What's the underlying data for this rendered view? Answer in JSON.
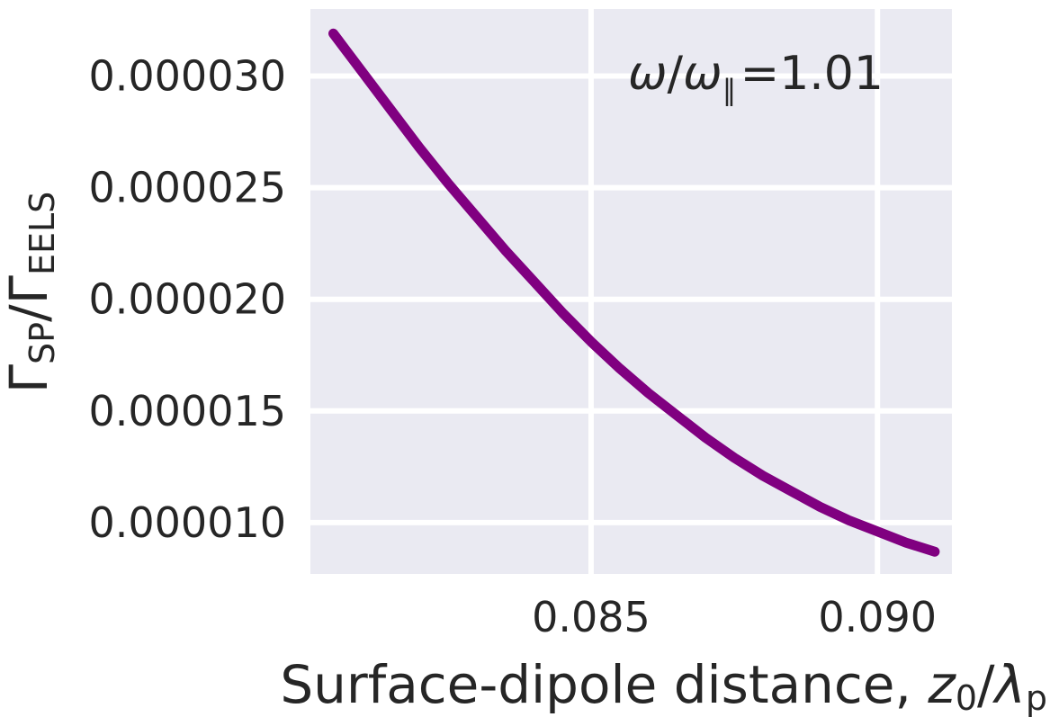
{
  "chart_data": {
    "type": "line",
    "xlabel": {
      "main": "Surface-dipole distance, ",
      "sym": "z",
      "sub1": "0",
      "slash": "/",
      "sym2": "λ",
      "sub2": "p"
    },
    "ylabel": {
      "gamma1": "Γ",
      "sub1": "SP",
      "slash": "/",
      "gamma2": "Γ",
      "sub2": "EELS"
    },
    "annotation": {
      "w1": "ω",
      "slash": "/",
      "w2": "ω",
      "sub": "∥",
      "rest": "=1.01"
    },
    "xlim": [
      0.0801,
      0.0913
    ],
    "ylim": [
      7.7e-06,
      3.3e-05
    ],
    "x_ticks": [
      {
        "value": 0.085,
        "label": "0.085"
      },
      {
        "value": 0.09,
        "label": "0.090"
      }
    ],
    "y_ticks": [
      {
        "value": 1e-05,
        "label": "0.000010"
      },
      {
        "value": 1.5e-05,
        "label": "0.000015"
      },
      {
        "value": 2e-05,
        "label": "0.000020"
      },
      {
        "value": 2.5e-05,
        "label": "0.000025"
      },
      {
        "value": 3e-05,
        "label": "0.000030"
      }
    ],
    "grid": true,
    "series": [
      {
        "color": "#800080",
        "x": [
          0.0805,
          0.081,
          0.0815,
          0.082,
          0.0825,
          0.083,
          0.0835,
          0.084,
          0.0845,
          0.085,
          0.0855,
          0.086,
          0.0865,
          0.087,
          0.0875,
          0.088,
          0.0885,
          0.089,
          0.0895,
          0.09,
          0.0905,
          0.091
        ],
        "y": [
          3.19e-05,
          3.02e-05,
          2.85e-05,
          2.68e-05,
          2.52e-05,
          2.37e-05,
          2.22e-05,
          2.08e-05,
          1.94e-05,
          1.81e-05,
          1.69e-05,
          1.58e-05,
          1.48e-05,
          1.38e-05,
          1.29e-05,
          1.21e-05,
          1.14e-05,
          1.07e-05,
          1.01e-05,
          9.6e-06,
          9.1e-06,
          8.7e-06
        ]
      }
    ]
  }
}
